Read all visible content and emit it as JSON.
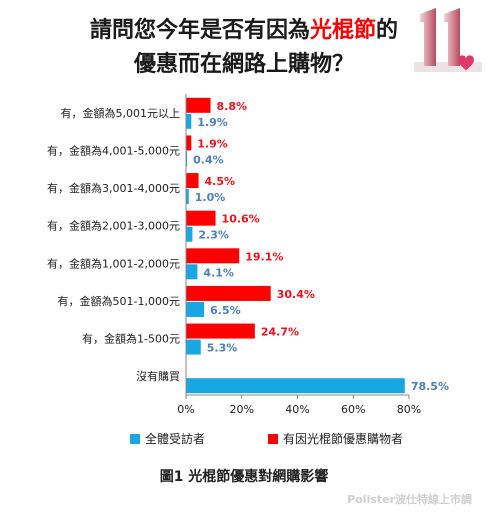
{
  "title": {
    "line1_pre": "請問您今年是否有因為",
    "line1_highlight": "光棍節",
    "line1_post": "的",
    "line2": "優惠而在網路上購物？"
  },
  "logo": {
    "text": "11"
  },
  "colors": {
    "all": "#18a7e3",
    "bought": "#ff0000",
    "all_label": "#4d7fb9",
    "bought_label": "#e8141b"
  },
  "legend": {
    "all": "全體受訪者",
    "bought": "有因光棍節優惠購物者"
  },
  "caption": "圖1 光棍節優惠對網購影響",
  "source": "Pollster波仕特線上市調",
  "chart_data": {
    "type": "bar",
    "orientation": "horizontal",
    "categories": [
      "有，金額為5,001元以上",
      "有，金額為4,001-5,000元",
      "有，金額為3,001-4,000元",
      "有，金額為2,001-3,000元",
      "有，金額為1,001-2,000元",
      "有，金額為501-1,000元",
      "有，金額為1-500元",
      "沒有購買"
    ],
    "series": [
      {
        "name": "有因光棍節優惠購物者",
        "values": [
          8.8,
          1.9,
          4.5,
          10.6,
          19.1,
          30.4,
          24.7,
          null
        ],
        "labels": [
          "8.8%",
          "1.9%",
          "4.5%",
          "10.6%",
          "19.1%",
          "30.4%",
          "24.7%",
          ""
        ]
      },
      {
        "name": "全體受訪者",
        "values": [
          1.9,
          0.4,
          1.0,
          2.3,
          4.1,
          6.5,
          5.3,
          78.5
        ],
        "labels": [
          "1.9%",
          "0.4%",
          "1.0%",
          "2.3%",
          "4.1%",
          "6.5%",
          "5.3%",
          "78.5%"
        ]
      }
    ],
    "xlim": [
      0,
      80
    ],
    "xticks": [
      "0%",
      "20%",
      "40%",
      "60%",
      "80%"
    ],
    "grid": false
  }
}
